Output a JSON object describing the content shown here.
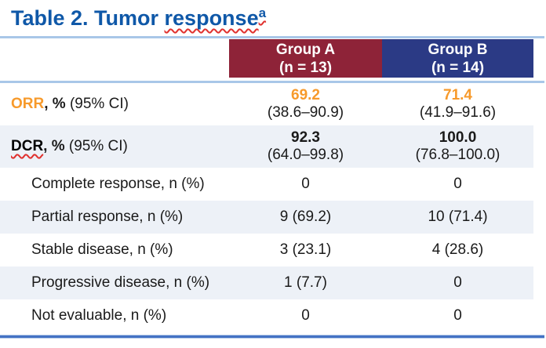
{
  "title": {
    "main": "Table 2. Tumor ",
    "spellcheck_word": "response",
    "superscript": "a"
  },
  "header": {
    "group_a": {
      "name": "Group A",
      "n": "(n = 13)"
    },
    "group_b": {
      "name": "Group B",
      "n": "(n = 14)"
    }
  },
  "rows": [
    {
      "label_acronym": "ORR",
      "label_bold": ", %",
      "label_regular": " (95% CI)",
      "acronym_color": "#F79A2B",
      "acronym_squiggle": false,
      "indent": false,
      "value_style": "orange",
      "group_a": {
        "main": "69.2",
        "sub": "(38.6–90.9)"
      },
      "group_b": {
        "main": "71.4",
        "sub": "(41.9–91.6)"
      }
    },
    {
      "label_acronym": "DCR",
      "label_bold": ", %",
      "label_regular": " (95% CI)",
      "acronym_color": "#000000",
      "acronym_squiggle": true,
      "indent": false,
      "value_style": "bold",
      "group_a": {
        "main": "92.3",
        "sub": "(64.0–99.8)"
      },
      "group_b": {
        "main": "100.0",
        "sub": "(76.8–100.0)"
      }
    },
    {
      "label": "Complete response, n (%)",
      "indent": true,
      "value_style": "plain",
      "group_a": {
        "main": "0"
      },
      "group_b": {
        "main": "0"
      }
    },
    {
      "label": "Partial response, n (%)",
      "indent": true,
      "value_style": "plain",
      "group_a": {
        "main": "9 (69.2)"
      },
      "group_b": {
        "main": "10 (71.4)"
      }
    },
    {
      "label": "Stable disease, n (%)",
      "indent": true,
      "value_style": "plain",
      "group_a": {
        "main": "3 (23.1)"
      },
      "group_b": {
        "main": "4 (28.6)"
      }
    },
    {
      "label": "Progressive disease, n (%)",
      "indent": true,
      "value_style": "plain",
      "group_a": {
        "main": "1 (7.7)"
      },
      "group_b": {
        "main": "0"
      }
    },
    {
      "label": "Not evaluable, n (%)",
      "indent": true,
      "value_style": "plain",
      "group_a": {
        "main": "0"
      },
      "group_b": {
        "main": "0"
      }
    }
  ],
  "colors": {
    "title_blue": "#0F58A8",
    "group_a_bg": "#8E2338",
    "group_b_bg": "#2B3A85",
    "header_text": "#FFFFFF",
    "orange_value": "#F79A2B",
    "row_alt_bg": "#EDF1F7",
    "thin_rule": "#A9C7E8",
    "bottom_rule": "#4472C4",
    "spellcheck_red": "#E0312E"
  },
  "chart_data": {
    "type": "table",
    "title": "Table 2. Tumor response",
    "columns": [
      "",
      "Group A (n = 13)",
      "Group B (n = 14)"
    ],
    "rows": [
      [
        "ORR, % (95% CI)",
        "69.2 (38.6–90.9)",
        "71.4 (41.9–91.6)"
      ],
      [
        "DCR, % (95% CI)",
        "92.3 (64.0–99.8)",
        "100.0 (76.8–100.0)"
      ],
      [
        "Complete response, n (%)",
        "0",
        "0"
      ],
      [
        "Partial response, n (%)",
        "9 (69.2)",
        "10 (71.4)"
      ],
      [
        "Stable disease, n (%)",
        "3 (23.1)",
        "4 (28.6)"
      ],
      [
        "Progressive disease, n (%)",
        "1 (7.7)",
        "0"
      ],
      [
        "Not evaluable, n (%)",
        "0",
        "0"
      ]
    ]
  }
}
